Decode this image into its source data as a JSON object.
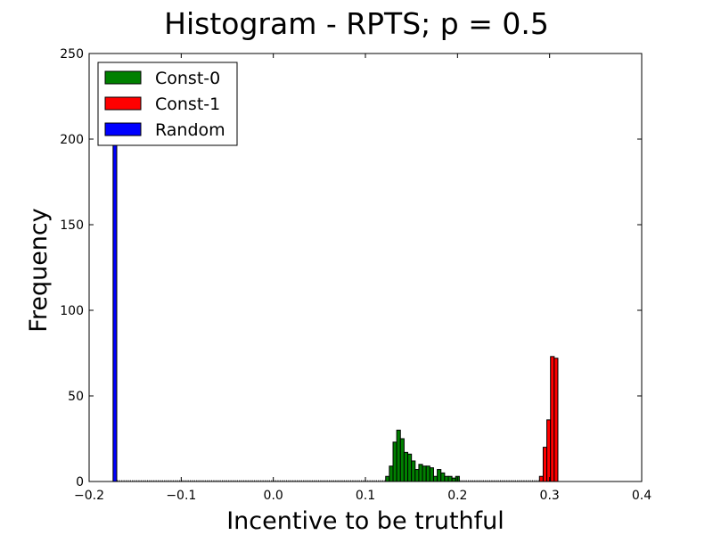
{
  "chart_data": {
    "type": "bar",
    "title": "Histogram - RPTS;  p = 0.5",
    "xlabel": "Incentive to be truthful",
    "ylabel": "Frequency",
    "xlim": [
      -0.2,
      0.4
    ],
    "ylim": [
      0,
      250
    ],
    "xticks": [
      -0.2,
      -0.1,
      0.0,
      0.1,
      0.2,
      0.3,
      0.4
    ],
    "xtick_labels": [
      "−0.2",
      "−0.1",
      "0.0",
      "0.1",
      "0.2",
      "0.3",
      "0.4"
    ],
    "yticks": [
      0,
      50,
      100,
      150,
      200,
      250
    ],
    "ytick_labels": [
      "0",
      "50",
      "100",
      "150",
      "200",
      "250"
    ],
    "grid": false,
    "legend_position": "top-left",
    "bin_width": 0.004,
    "series": [
      {
        "name": "Const-0",
        "color": "#008000",
        "bins": [
          {
            "x": 0.122,
            "count": 3
          },
          {
            "x": 0.126,
            "count": 9
          },
          {
            "x": 0.13,
            "count": 23
          },
          {
            "x": 0.134,
            "count": 30
          },
          {
            "x": 0.138,
            "count": 25
          },
          {
            "x": 0.142,
            "count": 17
          },
          {
            "x": 0.146,
            "count": 16
          },
          {
            "x": 0.15,
            "count": 12
          },
          {
            "x": 0.154,
            "count": 7
          },
          {
            "x": 0.158,
            "count": 10
          },
          {
            "x": 0.162,
            "count": 9
          },
          {
            "x": 0.166,
            "count": 9
          },
          {
            "x": 0.17,
            "count": 8
          },
          {
            "x": 0.174,
            "count": 3
          },
          {
            "x": 0.178,
            "count": 7
          },
          {
            "x": 0.182,
            "count": 5
          },
          {
            "x": 0.186,
            "count": 3
          },
          {
            "x": 0.19,
            "count": 3
          },
          {
            "x": 0.194,
            "count": 2
          },
          {
            "x": 0.198,
            "count": 3
          }
        ]
      },
      {
        "name": "Const-1",
        "color": "#ff0000",
        "bins": [
          {
            "x": 0.289,
            "count": 3
          },
          {
            "x": 0.293,
            "count": 20
          },
          {
            "x": 0.297,
            "count": 36
          },
          {
            "x": 0.301,
            "count": 73
          },
          {
            "x": 0.305,
            "count": 72
          }
        ]
      },
      {
        "name": "Random",
        "color": "#0000ff",
        "bins": [
          {
            "x": -0.174,
            "count": 200
          }
        ]
      }
    ]
  }
}
